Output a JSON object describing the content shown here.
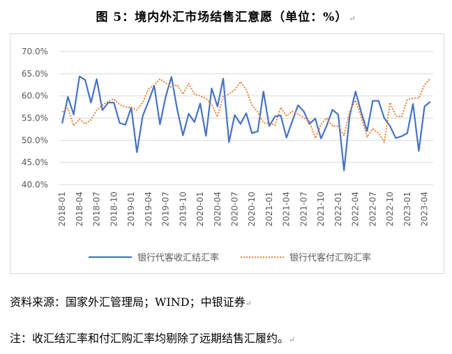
{
  "title": "图 5：境内外汇市场结售汇意愿（单位：%）",
  "para_mark": "↵",
  "source_note": "资料来源：国家外汇管理局；WIND；中银证券",
  "footnote": "注：收汇结汇率和付汇购汇率均剔除了远期结售汇履约。",
  "chart_data": {
    "type": "line",
    "title": "",
    "xlabel": "",
    "ylabel": "",
    "ylim": [
      40,
      70
    ],
    "y_ticks": [
      "40.0%",
      "45.0%",
      "50.0%",
      "55.0%",
      "60.0%",
      "65.0%",
      "70.0%"
    ],
    "y_tick_values": [
      40,
      45,
      50,
      55,
      60,
      65,
      70
    ],
    "grid": "horizontal",
    "legend_position": "bottom",
    "x_tick_labels": [
      "2018-01",
      "2018-04",
      "2018-07",
      "2018-10",
      "2019-01",
      "2019-04",
      "2019-07",
      "2019-10",
      "2020-01",
      "2020-04",
      "2020-07",
      "2020-10",
      "2021-01",
      "2021-04",
      "2021-07",
      "2021-10",
      "2022-01",
      "2022-04",
      "2022-07",
      "2022-10",
      "2023-01",
      "2023-04"
    ],
    "x": [
      "2018-01",
      "2018-02",
      "2018-03",
      "2018-04",
      "2018-05",
      "2018-06",
      "2018-07",
      "2018-08",
      "2018-09",
      "2018-10",
      "2018-11",
      "2018-12",
      "2019-01",
      "2019-02",
      "2019-03",
      "2019-04",
      "2019-05",
      "2019-06",
      "2019-07",
      "2019-08",
      "2019-09",
      "2019-10",
      "2019-11",
      "2019-12",
      "2020-01",
      "2020-02",
      "2020-03",
      "2020-04",
      "2020-05",
      "2020-06",
      "2020-07",
      "2020-08",
      "2020-09",
      "2020-10",
      "2020-11",
      "2020-12",
      "2021-01",
      "2021-02",
      "2021-03",
      "2021-04",
      "2021-05",
      "2021-06",
      "2021-07",
      "2021-08",
      "2021-09",
      "2021-10",
      "2021-11",
      "2021-12",
      "2022-01",
      "2022-02",
      "2022-03",
      "2022-04",
      "2022-05",
      "2022-06",
      "2022-07",
      "2022-08",
      "2022-09",
      "2022-10",
      "2022-11",
      "2022-12",
      "2023-01",
      "2023-02",
      "2023-03",
      "2023-04",
      "2023-05"
    ],
    "series": [
      {
        "name": "银行代客收汇结汇率",
        "color": "#4472C4",
        "style": "solid",
        "values": [
          53.8,
          59.8,
          55.8,
          64.4,
          63.6,
          58.5,
          63.8,
          56.8,
          58.5,
          58.5,
          53.9,
          53.5,
          57.4,
          47.3,
          55.5,
          58.7,
          62.3,
          53.6,
          59.9,
          64.3,
          57.0,
          51.1,
          56.0,
          54.1,
          58.3,
          51.0,
          61.7,
          57.6,
          63.9,
          49.6,
          55.7,
          53.7,
          56.1,
          51.6,
          52.0,
          61.0,
          53.2,
          55.4,
          55.6,
          50.6,
          54.3,
          57.9,
          56.5,
          53.7,
          54.9,
          50.4,
          53.3,
          56.9,
          55.8,
          43.2,
          55.6,
          61.0,
          56.3,
          52.1,
          58.9,
          58.9,
          55.0,
          53.2,
          50.5,
          50.9,
          51.6,
          58.2,
          47.6,
          57.6,
          58.7
        ]
      },
      {
        "name": "银行代客付汇购汇率",
        "color": "#ED7D31",
        "style": "dotted",
        "values": [
          56.4,
          57.2,
          53.3,
          54.8,
          53.7,
          54.6,
          56.8,
          57.9,
          58.8,
          59.3,
          58.0,
          57.5,
          57.4,
          56.8,
          58.5,
          61.6,
          62.5,
          63.8,
          63.0,
          61.9,
          62.5,
          60.4,
          62.8,
          60.4,
          60.0,
          59.4,
          58.1,
          55.3,
          60.0,
          60.4,
          61.4,
          63.2,
          61.4,
          57.9,
          56.4,
          53.9,
          53.9,
          53.4,
          57.4,
          55.5,
          56.5,
          55.9,
          55.1,
          54.2,
          50.5,
          53.6,
          55.0,
          53.2,
          53.2,
          51.1,
          56.5,
          59.0,
          55.2,
          50.8,
          52.6,
          51.6,
          49.6,
          58.5,
          55.5,
          55.3,
          59.1,
          59.5,
          59.5,
          62.5,
          63.9
        ]
      }
    ]
  }
}
